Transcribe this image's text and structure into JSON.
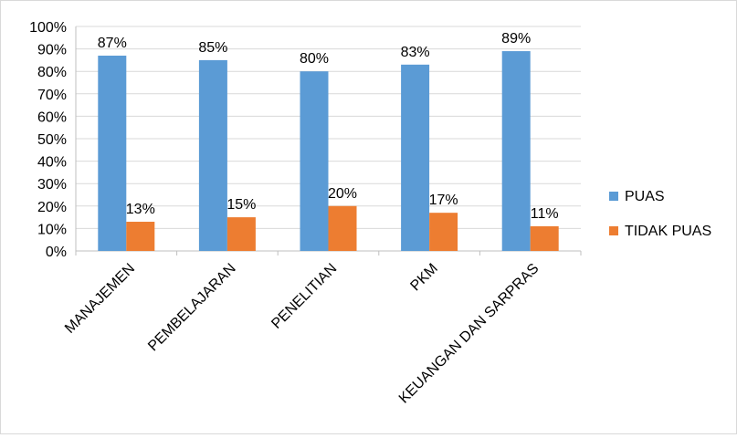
{
  "chart_data": {
    "type": "bar",
    "title": "",
    "xlabel": "",
    "ylabel": "",
    "ylim": [
      0,
      100
    ],
    "y_tick_step": 10,
    "y_tick_suffix": "%",
    "grid": true,
    "legend_position": "right",
    "categories": [
      "MANAJEMEN",
      "PEMBELAJARAN",
      "PENELITIAN",
      "PKM",
      "KEUANGAN DAN SARPRAS"
    ],
    "series": [
      {
        "name": "PUAS",
        "color": "#5b9bd5",
        "values": [
          87,
          85,
          80,
          83,
          89
        ],
        "labels": [
          "87%",
          "85%",
          "80%",
          "83%",
          "89%"
        ]
      },
      {
        "name": "TIDAK PUAS",
        "color": "#ed7d31",
        "values": [
          13,
          15,
          20,
          17,
          11
        ],
        "labels": [
          "13%",
          "15%",
          "20%",
          "17%",
          "11%"
        ]
      }
    ]
  }
}
